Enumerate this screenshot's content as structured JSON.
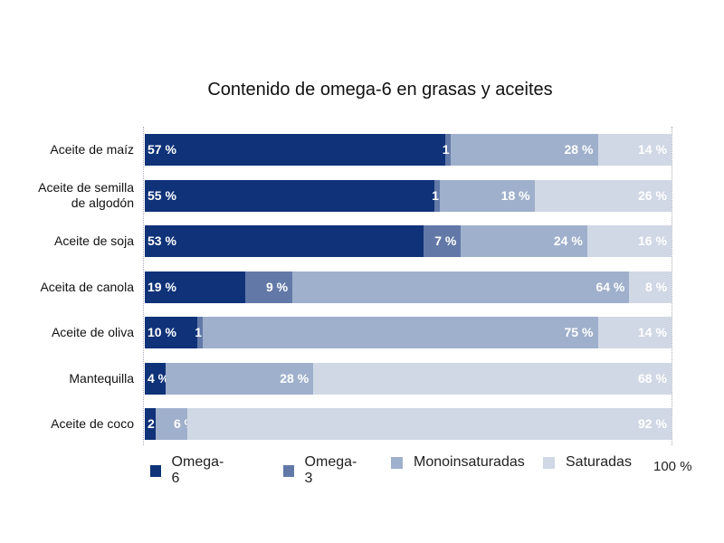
{
  "chart_data": {
    "type": "bar",
    "orientation": "horizontal",
    "stacked": true,
    "title": "Contenido de omega-6 en grasas y aceites",
    "categories": [
      "Aceite de maíz",
      "Aceite de semilla\nde algodón",
      "Aceite de soja",
      "Aceita de canola",
      "Aceite de oliva",
      "Mantequilla",
      "Aceite de coco"
    ],
    "series": [
      {
        "name": "Omega-6",
        "color": "#0f3278",
        "values": [
          57,
          55,
          53,
          19,
          10,
          4,
          2
        ]
      },
      {
        "name": "Omega-3",
        "color": "#6279a8",
        "values": [
          1,
          1,
          7,
          9,
          1,
          0,
          0
        ]
      },
      {
        "name": "Monoinsaturadas",
        "color": "#9fb0cc",
        "values": [
          28,
          18,
          24,
          64,
          75,
          28,
          6
        ]
      },
      {
        "name": "Saturadas",
        "color": "#d0d8e5",
        "values": [
          14,
          26,
          16,
          8,
          14,
          68,
          92
        ]
      }
    ],
    "value_suffix": " %",
    "xlim": [
      0,
      100
    ],
    "axis_end_label": "100 %",
    "legend_position": "bottom"
  }
}
